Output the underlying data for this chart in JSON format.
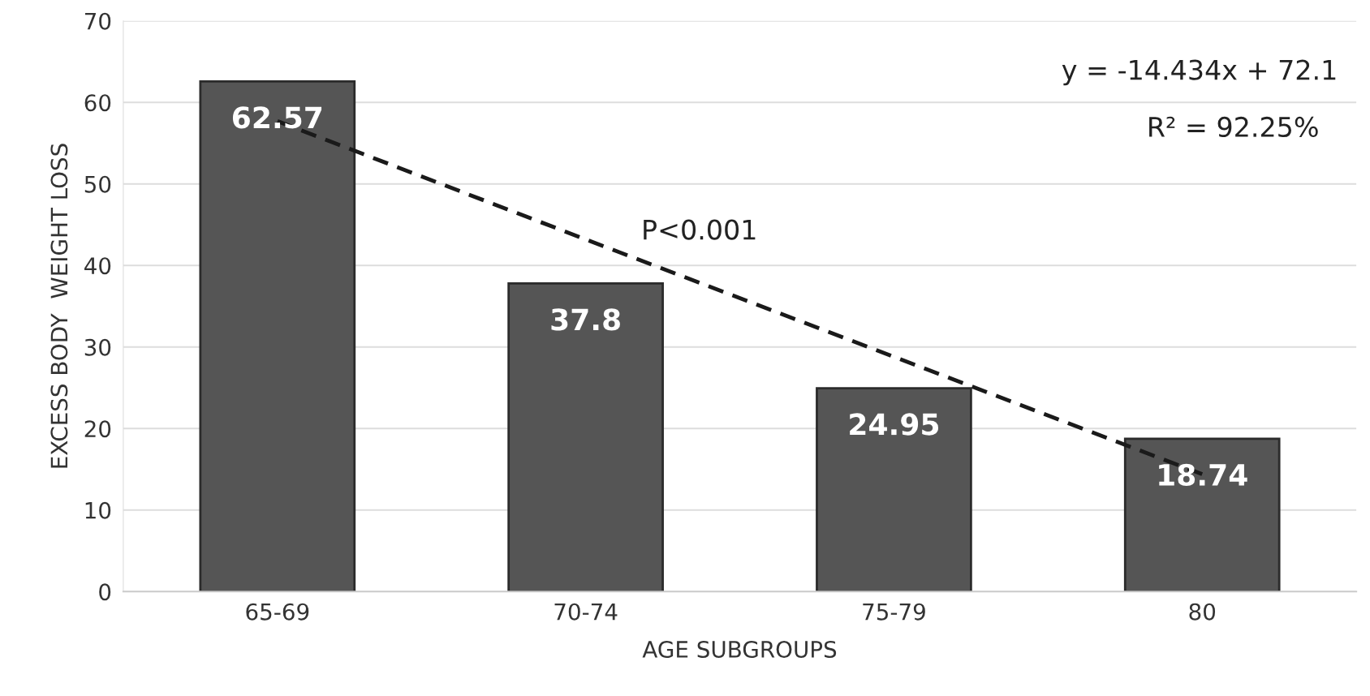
{
  "chart_data": {
    "type": "bar",
    "xlabel": "AGE SUBGROUPS",
    "ylabel": "EXCESS BODY  WEIGHT LOSS",
    "categories": [
      "65-69",
      "70-74",
      "75-79",
      "80"
    ],
    "series": [
      {
        "color": "#555555",
        "values": [
          62.57,
          37.8,
          24.95,
          18.74
        ],
        "value_labels": [
          "62.57",
          "37.8",
          "24.95",
          "18.74"
        ]
      },
      {
        "type": "line",
        "color": "#1a1a1a",
        "line_style": "dashed",
        "values": [
          57.7,
          43.2,
          28.8,
          14.4
        ]
      }
    ],
    "ylim": [
      0,
      70
    ],
    "yticks": [
      0,
      10,
      20,
      30,
      40,
      50,
      60,
      70
    ],
    "grid": "y",
    "legend": false,
    "annotations": [
      "y = -14.434x + 72.1",
      "R² = 92.25%",
      "P<0.001"
    ]
  }
}
